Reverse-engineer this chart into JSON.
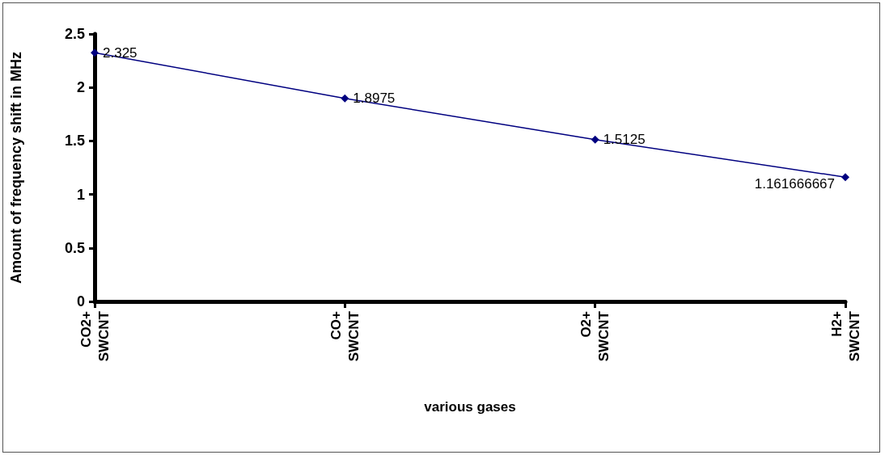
{
  "chart_data": {
    "type": "line",
    "xlabel": "various gases",
    "ylabel": "Amount of frequency shift in MHz",
    "categories": [
      "CO2+ SWCNT",
      "CO+ SWCNT",
      "O2+ SWCNT",
      "H2+ SWCNT"
    ],
    "series": [
      {
        "color": "#000080",
        "values": [
          2.325,
          1.8975,
          1.5125,
          1.161666667
        ]
      }
    ],
    "ylim": [
      0,
      2.5
    ],
    "yticks": [
      0,
      0.5,
      1,
      1.5,
      2,
      2.5
    ],
    "grid": false,
    "marker": "diamond",
    "line_style": "solid",
    "data_labels": true
  }
}
